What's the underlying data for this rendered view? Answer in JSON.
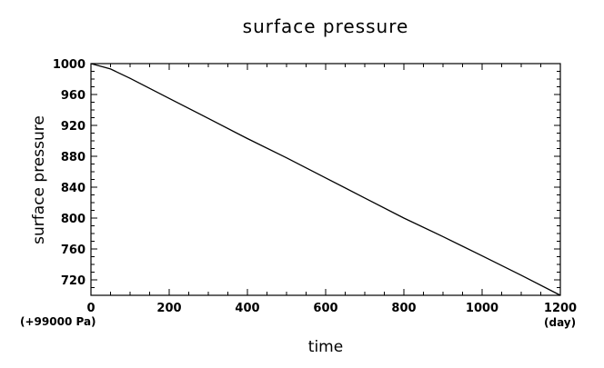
{
  "chart_data": {
    "type": "line",
    "title": "surface pressure",
    "xlabel": "time",
    "ylabel": "surface pressure",
    "x_unit": "(day)",
    "y_offset_note": "(+99000 Pa)",
    "xlim": [
      0,
      1200
    ],
    "ylim": [
      700,
      1000
    ],
    "x_ticks": [
      0,
      200,
      400,
      600,
      800,
      1000,
      1200
    ],
    "y_ticks": [
      720,
      760,
      800,
      840,
      880,
      920,
      960,
      1000
    ],
    "grid": false,
    "series": [
      {
        "x": [
          0,
          50,
          100,
          200,
          300,
          400,
          500,
          600,
          700,
          800,
          900,
          1000,
          1100,
          1200
        ],
        "y": [
          1000,
          993,
          981,
          955,
          929,
          903,
          878,
          852,
          826,
          800,
          776,
          751,
          726,
          700
        ]
      }
    ]
  }
}
